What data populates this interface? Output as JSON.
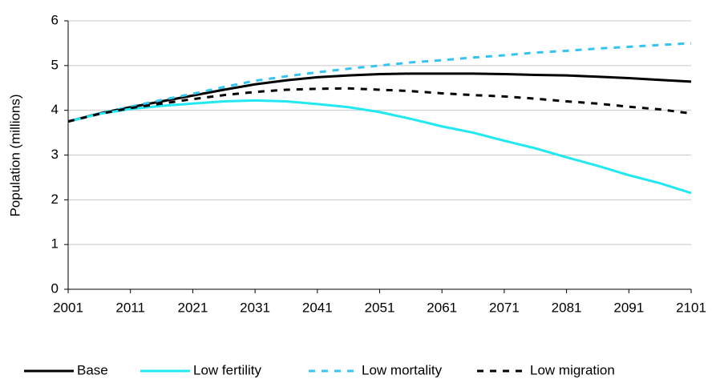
{
  "chart_data": {
    "type": "line",
    "y_label": "Population (millions)",
    "x": [
      2001,
      2006,
      2011,
      2016,
      2021,
      2026,
      2031,
      2036,
      2041,
      2046,
      2051,
      2056,
      2061,
      2066,
      2071,
      2076,
      2081,
      2086,
      2091,
      2096,
      2101
    ],
    "series": [
      {
        "name": "Base",
        "color": "#000000",
        "dash": false,
        "values": [
          3.75,
          3.93,
          4.07,
          4.2,
          4.33,
          4.46,
          4.58,
          4.67,
          4.74,
          4.78,
          4.81,
          4.82,
          4.82,
          4.82,
          4.81,
          4.79,
          4.78,
          4.75,
          4.72,
          4.68,
          4.64
        ]
      },
      {
        "name": "Low fertility",
        "color": "#22e8f2",
        "dash": false,
        "values": [
          3.75,
          3.92,
          4.03,
          4.1,
          4.15,
          4.2,
          4.22,
          4.2,
          4.14,
          4.07,
          3.96,
          3.81,
          3.64,
          3.5,
          3.32,
          3.15,
          2.95,
          2.76,
          2.55,
          2.37,
          2.15
        ]
      },
      {
        "name": "Low mortality",
        "color": "#33c4f0",
        "dash": true,
        "values": [
          3.75,
          3.93,
          4.08,
          4.23,
          4.37,
          4.52,
          4.66,
          4.76,
          4.85,
          4.93,
          5.0,
          5.07,
          5.12,
          5.18,
          5.23,
          5.29,
          5.33,
          5.38,
          5.42,
          5.46,
          5.5
        ]
      },
      {
        "name": "Low migration",
        "color": "#000000",
        "dash": true,
        "values": [
          3.75,
          3.92,
          4.05,
          4.15,
          4.25,
          4.34,
          4.41,
          4.46,
          4.48,
          4.49,
          4.46,
          4.43,
          4.38,
          4.34,
          4.31,
          4.26,
          4.2,
          4.15,
          4.08,
          4.02,
          3.93
        ]
      }
    ],
    "xlim": [
      2001,
      2101
    ],
    "xticks": [
      2001,
      2011,
      2021,
      2031,
      2041,
      2051,
      2061,
      2071,
      2081,
      2091,
      2101
    ],
    "ylim": [
      0,
      6
    ],
    "yticks": [
      0,
      1,
      2,
      3,
      4,
      5,
      6
    ],
    "grid": true,
    "legend": "bottom"
  }
}
